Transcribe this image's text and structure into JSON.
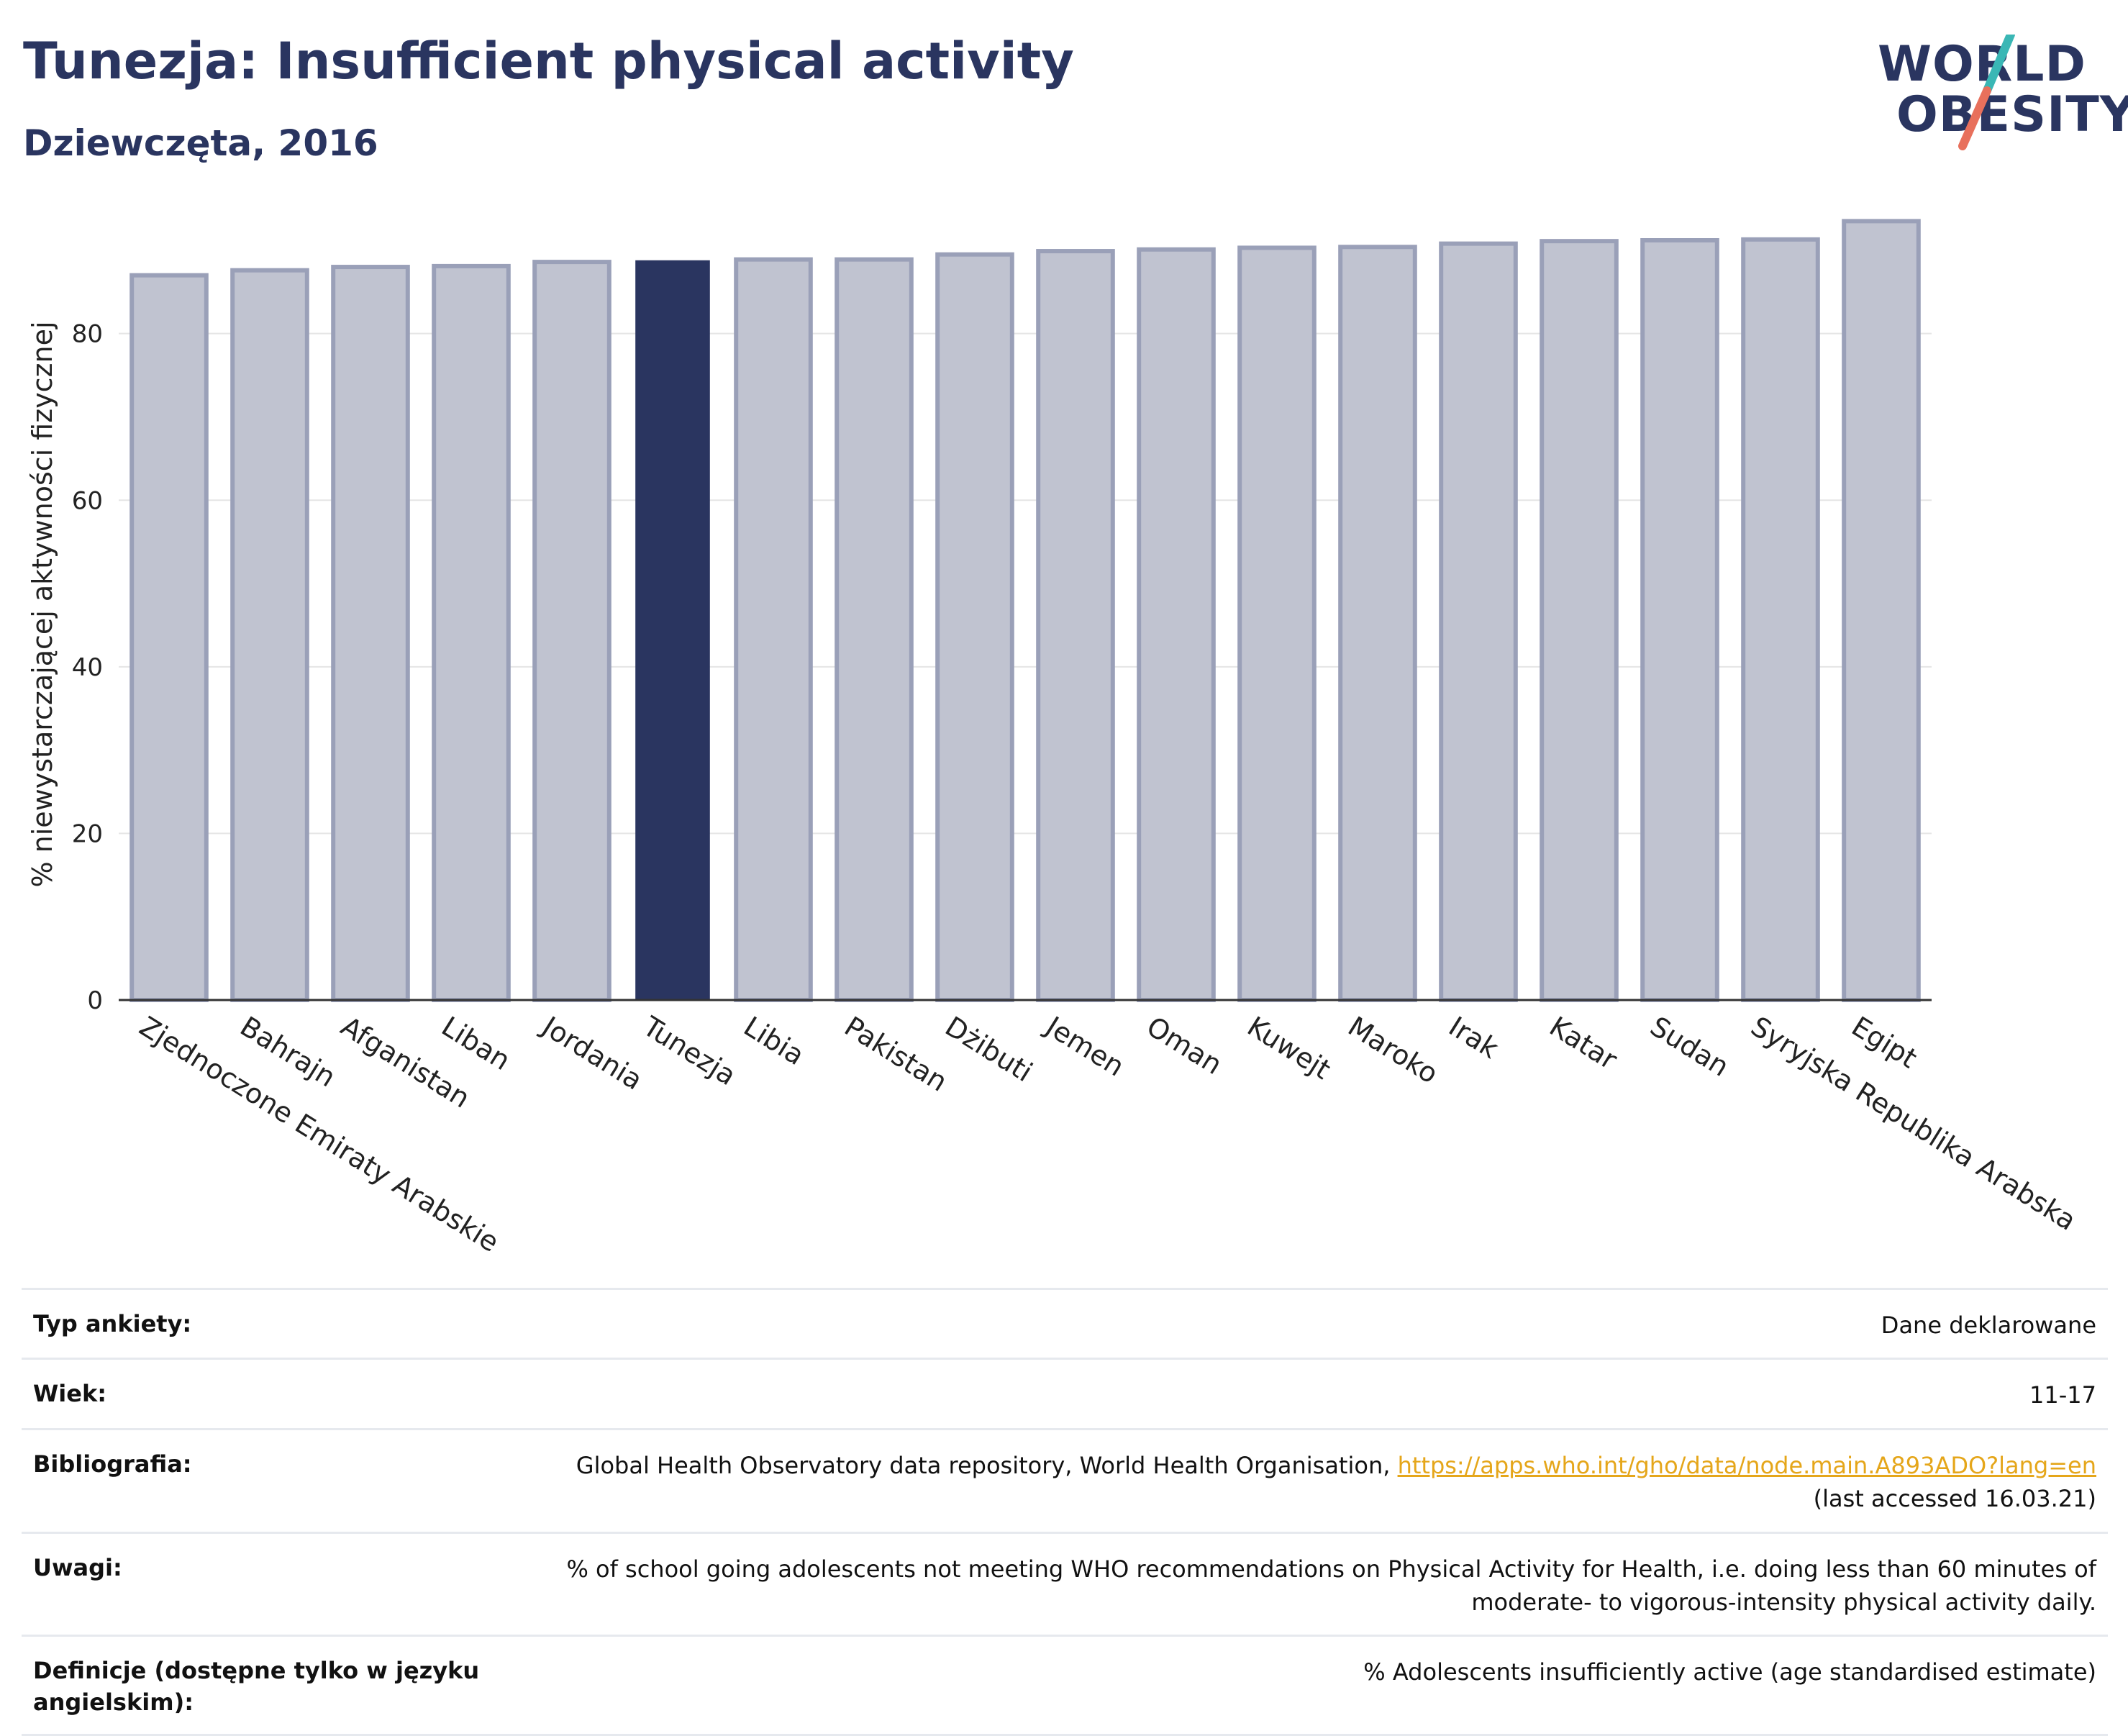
{
  "header": {
    "title": "Tunezja: Insufficient physical activity",
    "subtitle": "Dziewczęta, 2016"
  },
  "logo": {
    "line1": "WORLD",
    "line2": "OBESITY",
    "colors": {
      "text": "#2a3560",
      "slash_top": "#3ab7b5",
      "slash_bottom": "#e8705c"
    }
  },
  "chart_data": {
    "type": "bar",
    "title": "Tunezja: Insufficient physical activity",
    "subtitle": "Dziewczęta, 2016",
    "ylabel": "% niewystarczającej aktywności fizycznej",
    "xlabel": "",
    "ylim": [
      0,
      95
    ],
    "yticks": [
      0,
      20,
      40,
      60,
      80
    ],
    "grid": true,
    "highlight": "Tunezja",
    "colors": {
      "bar": "#c0c3d0",
      "bar_edge": "#9aa0b8",
      "highlight": "#2a3560",
      "grid": "#e5e5e5",
      "axis": "#333333"
    },
    "categories": [
      "Zjednoczone Emiraty Arabskie",
      "Bahrajn",
      "Afganistan",
      "Liban",
      "Jordania",
      "Tunezja",
      "Libia",
      "Pakistan",
      "Dżibuti",
      "Jemen",
      "Oman",
      "Kuwejt",
      "Maroko",
      "Irak",
      "Katar",
      "Sudan",
      "Syryjska Republika Arabska",
      "Egipt"
    ],
    "values": [
      87.0,
      87.6,
      88.0,
      88.1,
      88.6,
      88.8,
      88.9,
      88.9,
      89.5,
      89.9,
      90.1,
      90.3,
      90.4,
      90.8,
      91.1,
      91.2,
      91.3,
      93.5
    ]
  },
  "meta": {
    "rows": [
      {
        "label": "Typ ankiety:",
        "value": "Dane deklarowane"
      },
      {
        "label": "Wiek:",
        "value": "11-17"
      },
      {
        "label": "Bibliografia:",
        "value": "Global Health Observatory data repository, World Health Organisation, ",
        "link": "https://apps.who.int/gho/data/node.main.A893ADO?lang=en",
        "value2": "(last accessed 16.03.21)"
      },
      {
        "label": "Uwagi:",
        "value": "% of school going adolescents not meeting WHO recommendations on Physical Activity for Health, i.e. doing less than 60 minutes of",
        "value2": "moderate- to vigorous-intensity physical activity daily."
      },
      {
        "label": "Definicje (dostępne tylko w języku angielskim):",
        "value": "% Adolescents insufficiently active (age standardised estimate)"
      }
    ]
  }
}
